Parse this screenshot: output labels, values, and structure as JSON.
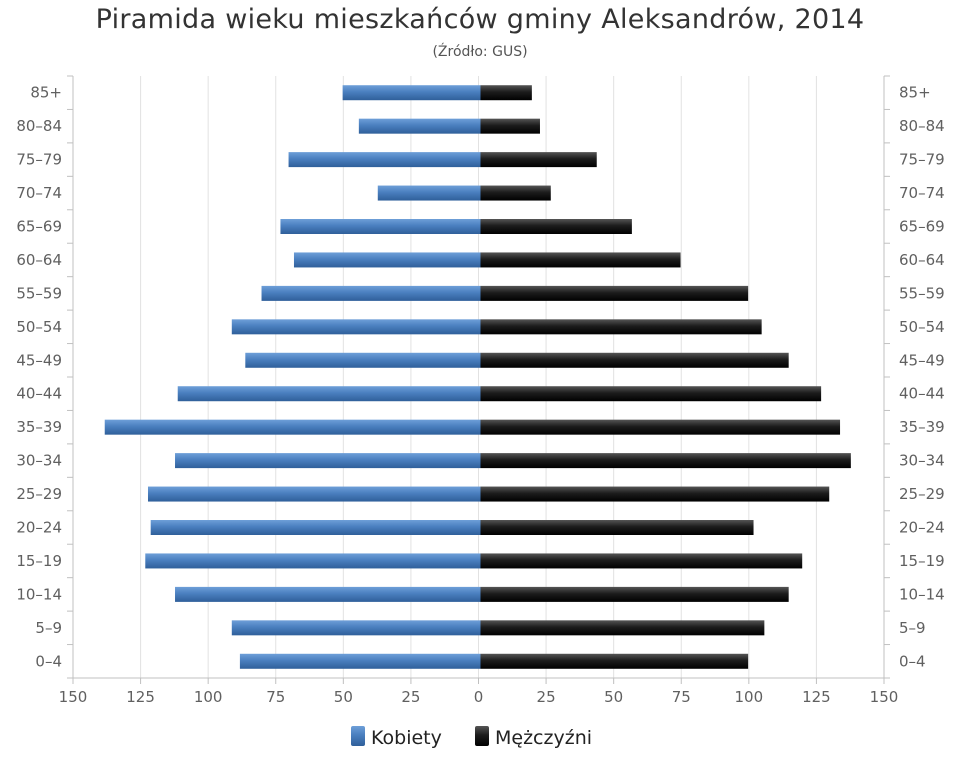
{
  "chart_data": {
    "type": "bar",
    "orientation": "horizontal-pyramid",
    "title": "Piramida wieku mieszkańców gminy Aleksandrów, 2014",
    "subtitle": "(Źródło: GUS)",
    "categories": [
      "0–4",
      "5–9",
      "10–14",
      "15–19",
      "20–24",
      "25–29",
      "30–34",
      "35–39",
      "40–44",
      "45–49",
      "50–54",
      "55–59",
      "60–64",
      "65–69",
      "70–74",
      "75–79",
      "80–84",
      "85+"
    ],
    "series": [
      {
        "name": "Kobiety",
        "side": "left",
        "color": "#4a7fbf",
        "values": [
          89,
          92,
          113,
          124,
          122,
          123,
          113,
          139,
          112,
          87,
          92,
          81,
          69,
          74,
          38,
          71,
          45,
          51
        ]
      },
      {
        "name": "Mężczyźni",
        "side": "right",
        "color": "#1a1a1a",
        "values": [
          99,
          105,
          114,
          119,
          101,
          129,
          137,
          133,
          126,
          114,
          104,
          99,
          74,
          56,
          26,
          43,
          22,
          19
        ]
      }
    ],
    "xticks": [
      "150",
      "125",
      "100",
      "75",
      "50",
      "25",
      "0",
      "25",
      "50",
      "75",
      "100",
      "125",
      "150"
    ],
    "xlim": [
      0,
      150
    ],
    "grid": true,
    "legend": "bottom-center"
  }
}
